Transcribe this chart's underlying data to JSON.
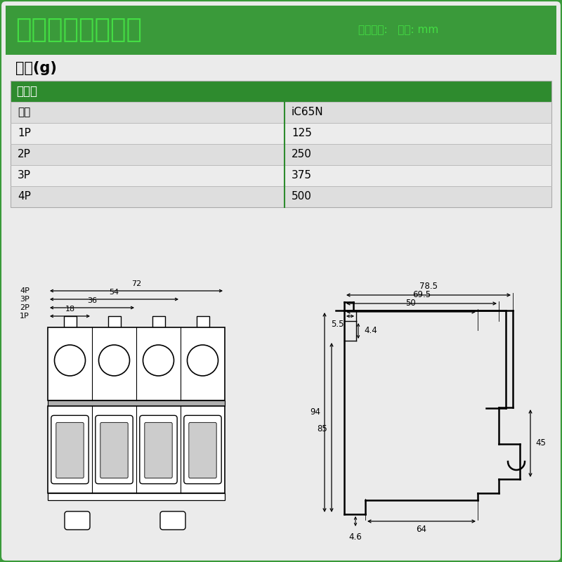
{
  "bg_color": "#3a9a3a",
  "panel_color": "#ebebeb",
  "green_header_color": "#2e8b2e",
  "title_text": "施耐德工业自动化",
  "title_color": "#44dd44",
  "subtitle_text": "产品尺寸:   单位: mm",
  "subtitle_color": "#44dd44",
  "weight_label": "重量(g)",
  "table_header": "断路器",
  "table_rows": [
    [
      "类型",
      "iC65N"
    ],
    [
      "1P",
      "125"
    ],
    [
      "2P",
      "250"
    ],
    [
      "3P",
      "375"
    ],
    [
      "4P",
      "500"
    ]
  ]
}
